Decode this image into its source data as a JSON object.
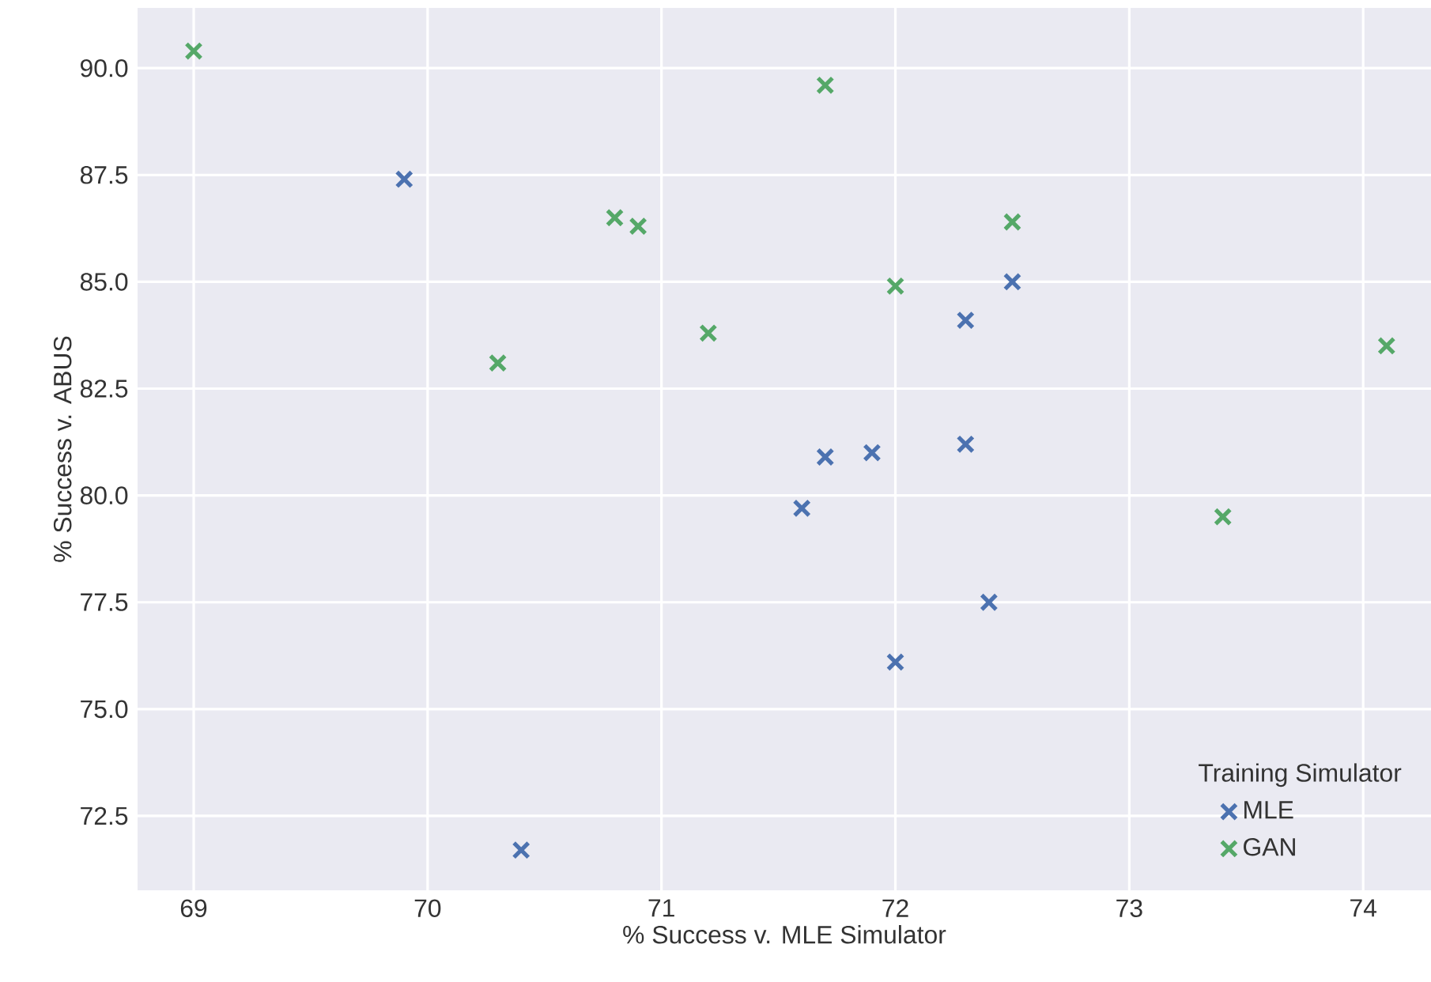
{
  "chart_data": {
    "type": "scatter",
    "xlabel": "% Success v. MLE Simulator",
    "ylabel": "% Success v. ABUS",
    "legend_title": "Training Simulator",
    "xlim": [
      68.76,
      74.29
    ],
    "ylim": [
      70.76,
      91.41
    ],
    "xticks": [
      69,
      70,
      71,
      72,
      73,
      74
    ],
    "yticks": [
      {
        "value": 72.5,
        "label": "72.5"
      },
      {
        "value": 75,
        "label": "75.0"
      },
      {
        "value": 77.5,
        "label": "77.5"
      },
      {
        "value": 80,
        "label": "80.0"
      },
      {
        "value": 82.5,
        "label": "82.5"
      },
      {
        "value": 85,
        "label": "85.0"
      },
      {
        "value": 87.5,
        "label": "87.5"
      },
      {
        "value": 90,
        "label": "90.0"
      }
    ],
    "grid": true,
    "legend": "bottom right",
    "marker": "cross",
    "series": [
      {
        "name": "MLE",
        "color": "#4c72b0",
        "x": [
          69.9,
          70.4,
          71.7,
          71.6,
          71.9,
          72.0,
          72.3,
          72.3,
          72.4,
          72.5
        ],
        "values": [
          87.4,
          71.7,
          80.9,
          79.7,
          81.0,
          76.1,
          81.2,
          84.1,
          77.5,
          85.0
        ]
      },
      {
        "name": "GAN",
        "color": "#55a868",
        "x": [
          69.0,
          71.7,
          70.8,
          70.9,
          70.3,
          71.2,
          72.0,
          72.5,
          73.4,
          74.1
        ],
        "values": [
          90.4,
          89.6,
          86.5,
          86.3,
          83.1,
          83.8,
          84.9,
          86.4,
          79.5,
          83.5
        ]
      }
    ]
  }
}
